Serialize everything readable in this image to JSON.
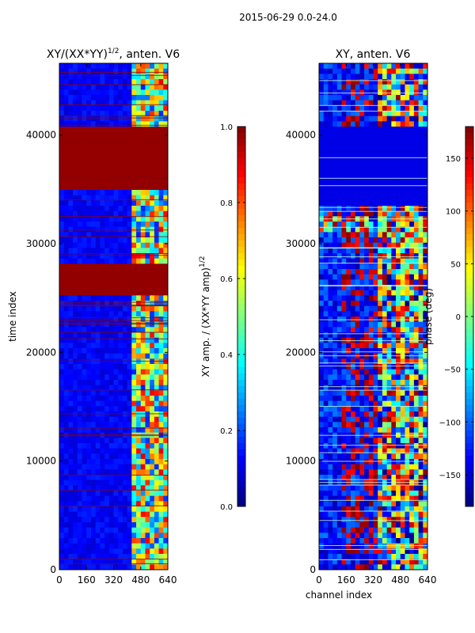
{
  "suptitle": "2015-06-29 0.0-24.0",
  "chart_data": [
    {
      "type": "heatmap",
      "name": "amplitude",
      "title_main": "XY/(XX*YY)",
      "title_exp": "1/2",
      "title_tail": ", anten. V6",
      "xlabel": "",
      "ylabel": "time index",
      "xlim": [
        0,
        640
      ],
      "ylim": [
        0,
        46600
      ],
      "xticks": [
        0,
        160,
        320,
        480,
        640
      ],
      "yticks": [
        0,
        10000,
        20000,
        30000,
        40000
      ],
      "colorbar": {
        "label_main": "XY amp. / (XX*YY amp)",
        "label_exp": "1/2",
        "range": [
          0.0,
          1.0
        ],
        "ticks": [
          0.0,
          0.2,
          0.4,
          0.6,
          0.8,
          1.0
        ],
        "ticklabels": [
          "0.0",
          "0.2",
          "0.4",
          "0.6",
          "0.8",
          "1.0"
        ],
        "colormap": "jet"
      },
      "saturated_time_ranges": [
        [
          25200,
          28000
        ],
        [
          34800,
          41000
        ]
      ],
      "busy_channel_range": [
        420,
        640
      ]
    },
    {
      "type": "heatmap",
      "name": "phase",
      "title_main": "XY, anten. V6",
      "title_exp": "",
      "title_tail": "",
      "xlabel": "channel index",
      "ylabel": "",
      "xlim": [
        0,
        640
      ],
      "ylim": [
        0,
        46600
      ],
      "xticks": [
        0,
        160,
        320,
        480,
        640
      ],
      "yticks": [
        0,
        10000,
        20000,
        30000,
        40000
      ],
      "colorbar": {
        "label_main": "phase (deg)",
        "label_exp": "",
        "range": [
          -180,
          180
        ],
        "ticks": [
          -150,
          -100,
          -50,
          0,
          50,
          100,
          150
        ],
        "ticklabels": [
          "−150",
          "−100",
          "−50",
          "0",
          "50",
          "100",
          "150"
        ],
        "colormap": "jet"
      },
      "flat_time_ranges": [
        [
          33500,
          41000
        ],
        [
          0,
          0
        ]
      ],
      "noisy_time_ranges": [
        [
          31000,
          33200
        ]
      ],
      "busy_channel_range": [
        340,
        640
      ]
    }
  ]
}
